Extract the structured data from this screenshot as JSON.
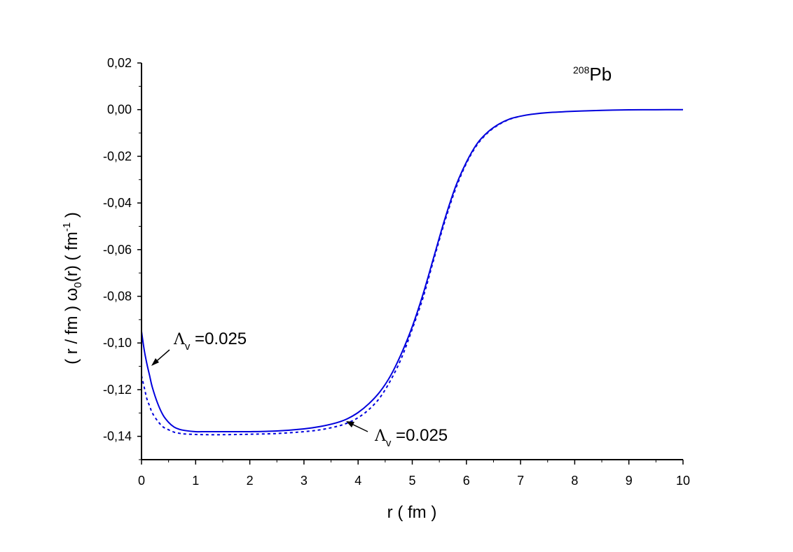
{
  "chart_data": {
    "type": "line",
    "title": "",
    "xlabel": "r ( fm )",
    "ylabel_parts": {
      "pre": "( r / fm ) ω",
      "sub": "0",
      "mid": "(r)  ( fm",
      "sup": "-1",
      "post": " )"
    },
    "xlim": [
      0,
      10
    ],
    "ylim": [
      -0.15,
      0.02
    ],
    "xticks": [
      0,
      1,
      2,
      3,
      4,
      5,
      6,
      7,
      8,
      9,
      10
    ],
    "xtick_labels": [
      "0",
      "1",
      "2",
      "3",
      "4",
      "5",
      "6",
      "7",
      "8",
      "9",
      "10"
    ],
    "yticks": [
      0.02,
      0.0,
      -0.02,
      -0.04,
      -0.06,
      -0.08,
      -0.1,
      -0.12,
      -0.14
    ],
    "ytick_labels": [
      "0,02",
      "0,00",
      "-0,02",
      "-0,04",
      "-0,06",
      "-0,08",
      "-0,10",
      "-0,12",
      "-0,14"
    ],
    "grid": false,
    "series": [
      {
        "style": "solid",
        "color": "#0000dd",
        "x": [
          0,
          0.05,
          0.1,
          0.15,
          0.2,
          0.3,
          0.4,
          0.5,
          0.6,
          0.7,
          0.8,
          1.0,
          1.2,
          1.5,
          1.8,
          2.0,
          2.5,
          3.0,
          3.3,
          3.6,
          3.8,
          4.0,
          4.2,
          4.4,
          4.6,
          4.8,
          5.0,
          5.2,
          5.4,
          5.6,
          5.8,
          6.0,
          6.2,
          6.4,
          6.6,
          6.8,
          7.0,
          7.2,
          7.5,
          8.0,
          8.5,
          9.0,
          9.5,
          10.0
        ],
        "y": [
          -0.095,
          -0.103,
          -0.109,
          -0.114,
          -0.119,
          -0.126,
          -0.131,
          -0.134,
          -0.136,
          -0.137,
          -0.1375,
          -0.138,
          -0.138,
          -0.138,
          -0.138,
          -0.138,
          -0.1377,
          -0.1368,
          -0.1358,
          -0.1342,
          -0.1325,
          -0.1298,
          -0.126,
          -0.121,
          -0.114,
          -0.1045,
          -0.093,
          -0.079,
          -0.063,
          -0.047,
          -0.033,
          -0.0225,
          -0.0145,
          -0.0095,
          -0.0062,
          -0.004,
          -0.0028,
          -0.002,
          -0.0013,
          -0.0007,
          -0.0003,
          -0.0001,
          -5e-05,
          0.0
        ]
      },
      {
        "style": "dotted",
        "color": "#0000dd",
        "x": [
          0,
          0.05,
          0.1,
          0.15,
          0.2,
          0.3,
          0.4,
          0.5,
          0.6,
          0.7,
          0.8,
          1.0,
          1.2,
          1.5,
          1.8,
          2.0,
          2.5,
          3.0,
          3.3,
          3.6,
          3.8,
          4.0,
          4.2,
          4.4,
          4.6,
          4.8,
          5.0,
          5.2,
          5.4,
          5.6,
          5.8,
          6.0,
          6.2,
          6.4,
          6.6,
          6.8,
          7.0
        ],
        "y": [
          -0.114,
          -0.119,
          -0.124,
          -0.127,
          -0.13,
          -0.1335,
          -0.136,
          -0.1372,
          -0.1382,
          -0.1387,
          -0.139,
          -0.1392,
          -0.1393,
          -0.1393,
          -0.1392,
          -0.1391,
          -0.1388,
          -0.138,
          -0.1372,
          -0.1358,
          -0.1343,
          -0.132,
          -0.1285,
          -0.1235,
          -0.116,
          -0.1065,
          -0.094,
          -0.0805,
          -0.064,
          -0.048,
          -0.034,
          -0.023,
          -0.015,
          -0.0098,
          -0.0064,
          -0.0041,
          -0.0028
        ]
      }
    ],
    "annotations": [
      {
        "text": "Λ",
        "sub": "v",
        "value": " =0.025",
        "target": [
          0.08,
          -0.1105
        ]
      },
      {
        "text": "Λ",
        "sub": "v",
        "value": " =0.025",
        "target": [
          3.8,
          -0.1335
        ]
      }
    ],
    "label": {
      "sup": "208",
      "text": "Pb"
    }
  }
}
